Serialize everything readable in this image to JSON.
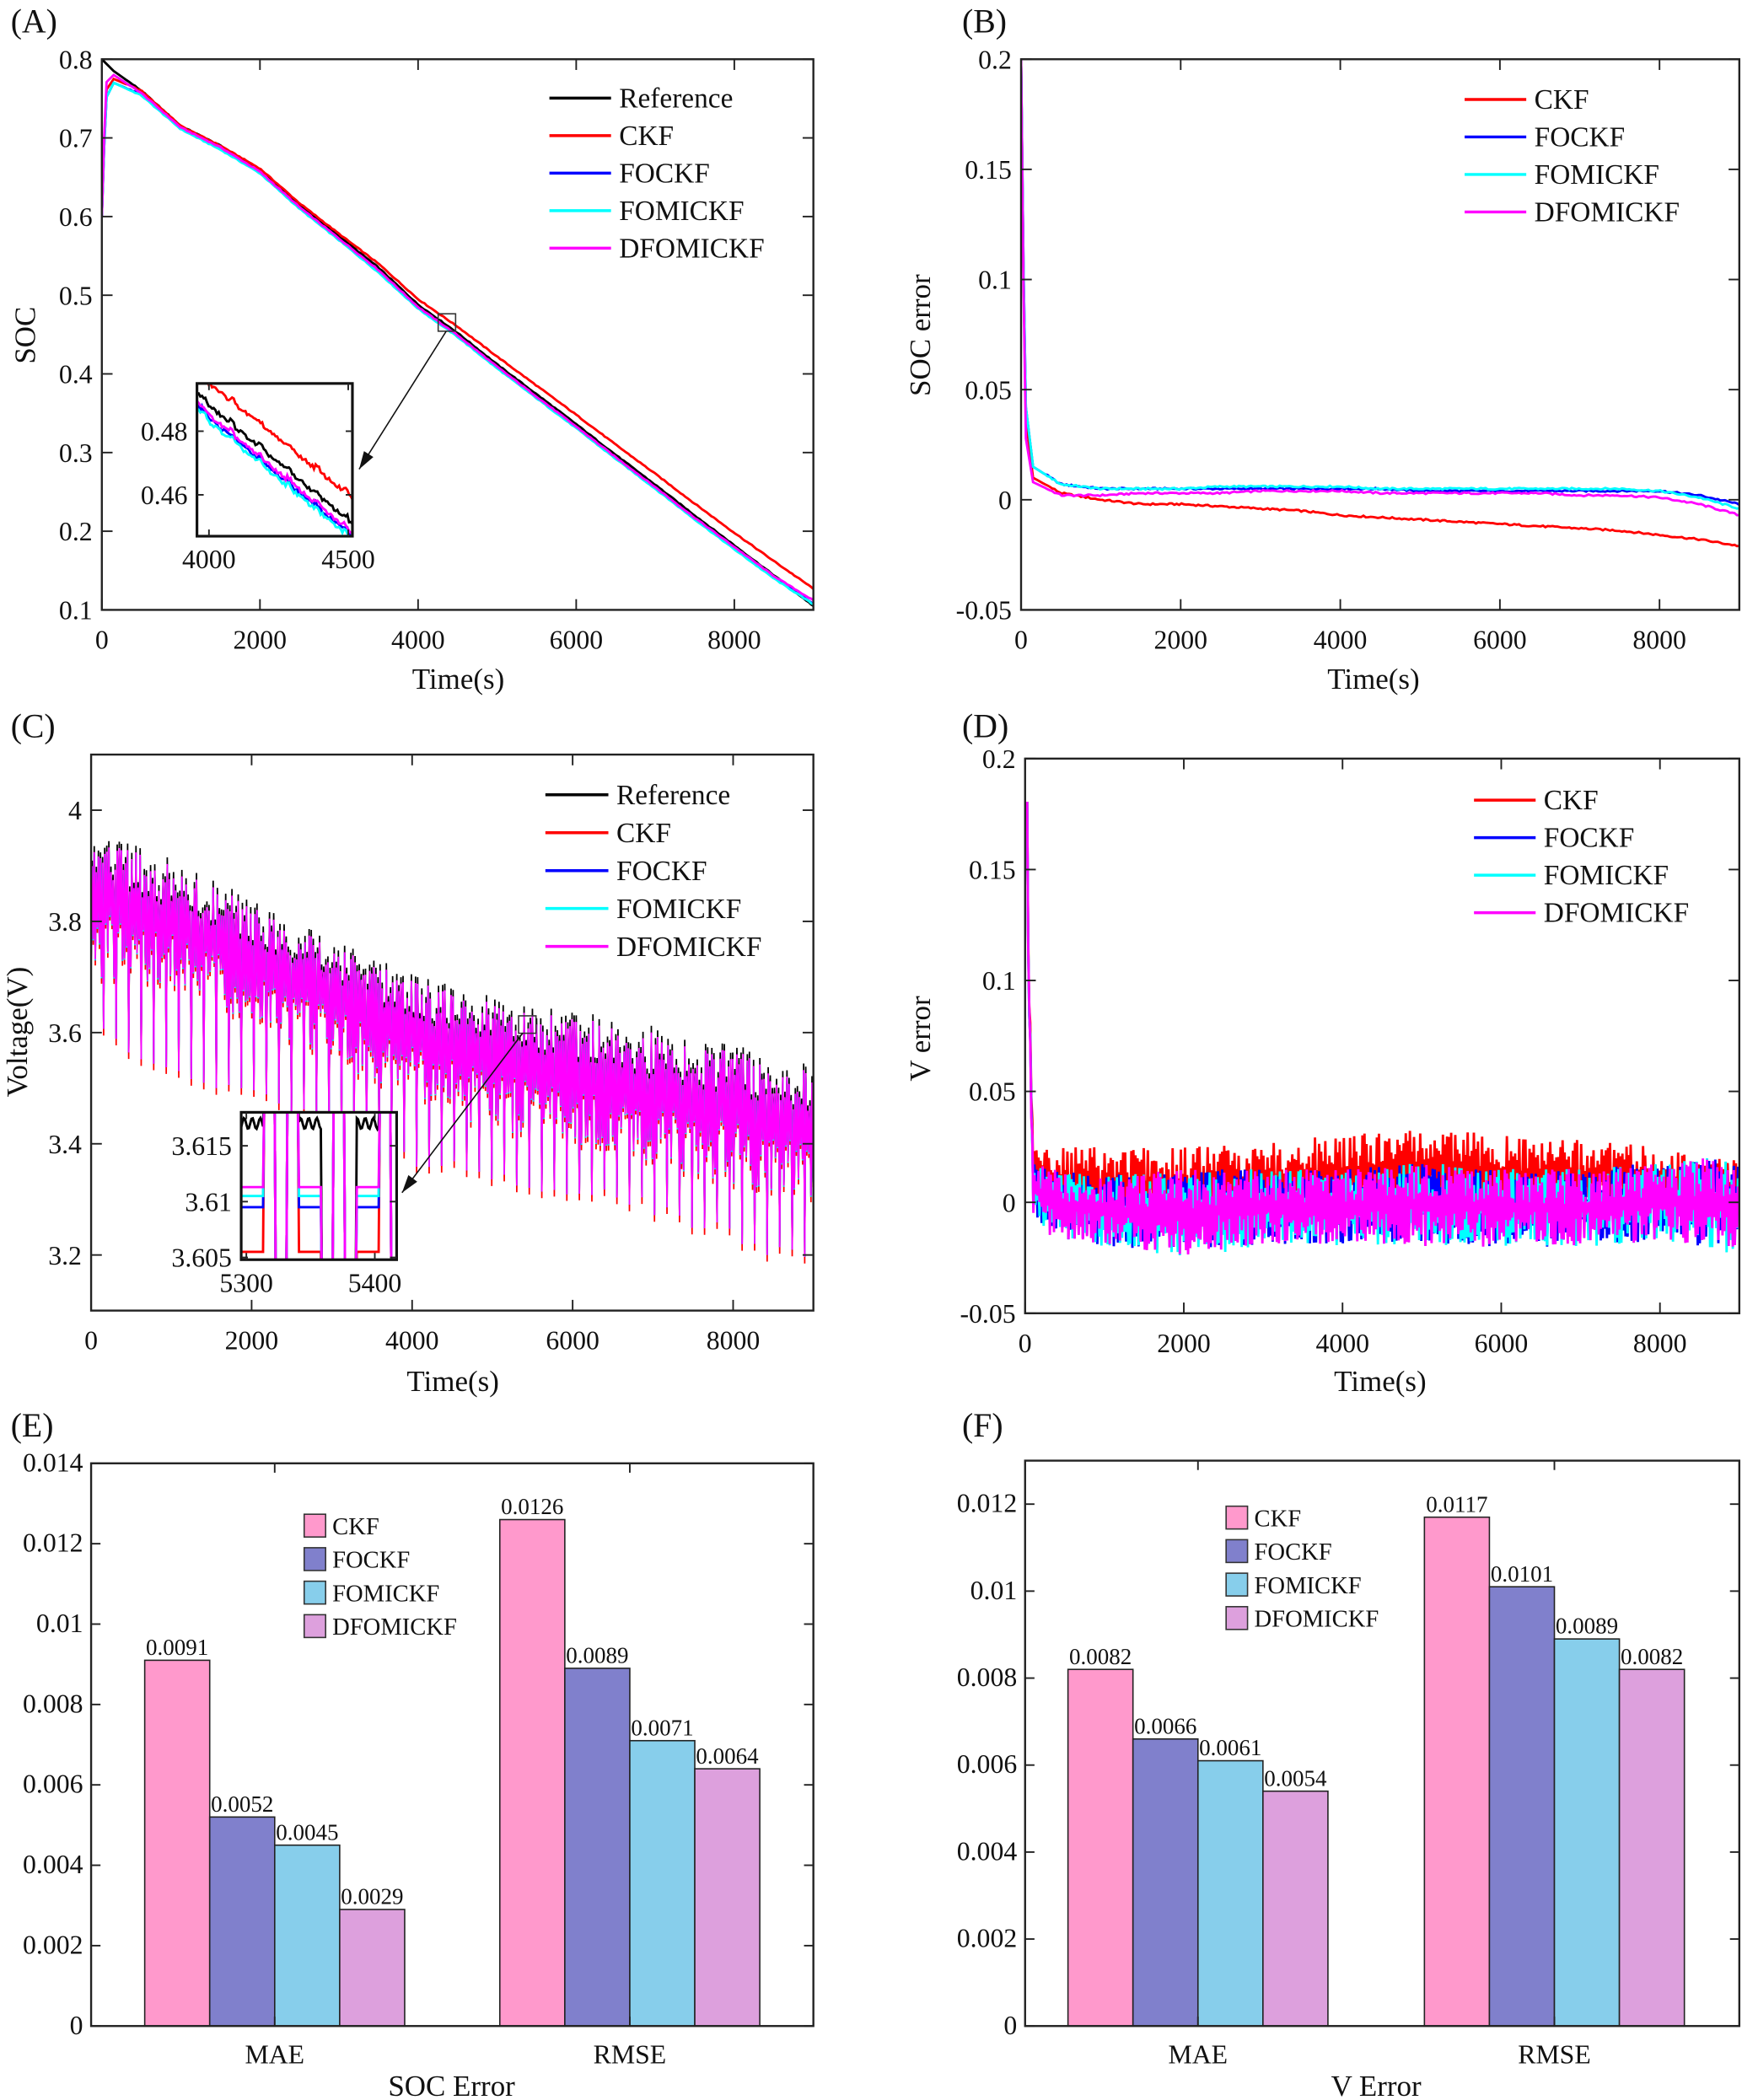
{
  "chart_data": [
    {
      "panel_label": "(A)",
      "type": "line",
      "xlabel": "Time(s)",
      "ylabel": "SOC",
      "xlim": [
        0,
        9000
      ],
      "ylim": [
        0.1,
        0.8
      ],
      "xticks": [
        "0",
        "2000",
        "4000",
        "6000",
        "8000"
      ],
      "yticks": [
        "0.1",
        "0.2",
        "0.3",
        "0.4",
        "0.5",
        "0.6",
        "0.7",
        "0.8"
      ],
      "legend_placement": "top-right",
      "x": [
        0,
        50,
        150,
        500,
        1000,
        1500,
        2000,
        2500,
        3000,
        3500,
        4000,
        4500,
        5000,
        5500,
        6000,
        6500,
        7000,
        7500,
        8000,
        8500,
        9000
      ],
      "series": [
        {
          "name": "Reference",
          "color": "#000000",
          "values": [
            0.8,
            0.795,
            0.785,
            0.76,
            0.715,
            0.69,
            0.66,
            0.615,
            0.575,
            0.535,
            0.488,
            0.452,
            0.412,
            0.374,
            0.336,
            0.297,
            0.259,
            0.22,
            0.182,
            0.144,
            0.105
          ]
        },
        {
          "name": "CKF",
          "color": "#ff0000",
          "values": [
            0.6,
            0.76,
            0.775,
            0.76,
            0.715,
            0.69,
            0.661,
            0.617,
            0.578,
            0.54,
            0.495,
            0.46,
            0.422,
            0.385,
            0.348,
            0.31,
            0.273,
            0.235,
            0.198,
            0.162,
            0.127
          ]
        },
        {
          "name": "FOCKF",
          "color": "#0000ff",
          "values": [
            0.6,
            0.75,
            0.77,
            0.755,
            0.712,
            0.686,
            0.656,
            0.611,
            0.571,
            0.53,
            0.484,
            0.448,
            0.408,
            0.37,
            0.332,
            0.293,
            0.255,
            0.216,
            0.178,
            0.141,
            0.108
          ]
        },
        {
          "name": "FOMICKF",
          "color": "#00ffff",
          "values": [
            0.6,
            0.75,
            0.77,
            0.754,
            0.711,
            0.685,
            0.655,
            0.61,
            0.57,
            0.529,
            0.483,
            0.447,
            0.407,
            0.369,
            0.331,
            0.292,
            0.254,
            0.215,
            0.177,
            0.14,
            0.107
          ]
        },
        {
          "name": "DFOMICKF",
          "color": "#ff00ff",
          "values": [
            0.6,
            0.77,
            0.78,
            0.757,
            0.713,
            0.688,
            0.657,
            0.612,
            0.572,
            0.532,
            0.485,
            0.449,
            0.409,
            0.371,
            0.333,
            0.294,
            0.256,
            0.217,
            0.18,
            0.143,
            0.112
          ]
        }
      ],
      "inset": {
        "xlim": [
          3957,
          4515
        ],
        "ylim": [
          0.447,
          0.495
        ],
        "xticks": [
          "4000",
          "4500"
        ],
        "yticks": [
          "0.46",
          "0.48"
        ]
      }
    },
    {
      "panel_label": "(B)",
      "type": "line",
      "xlabel": "Time(s)",
      "ylabel": "SOC error",
      "xlim": [
        0,
        9000
      ],
      "ylim": [
        -0.05,
        0.2
      ],
      "xticks": [
        "0",
        "2000",
        "4000",
        "6000",
        "8000"
      ],
      "yticks": [
        "-0.05",
        "0",
        "0.05",
        "0.1",
        "0.15",
        "0.2"
      ],
      "legend_placement": "top-right",
      "x": [
        0,
        50,
        150,
        500,
        1000,
        1500,
        2000,
        2500,
        3000,
        3500,
        4000,
        4500,
        5000,
        5500,
        6000,
        6500,
        7000,
        7500,
        8000,
        8500,
        9000
      ],
      "series": [
        {
          "name": "CKF",
          "color": "#ff0000",
          "values": [
            0.2,
            0.04,
            0.01,
            0.003,
            0,
            -0.002,
            -0.002,
            -0.003,
            -0.004,
            -0.005,
            -0.007,
            -0.008,
            -0.009,
            -0.01,
            -0.011,
            -0.012,
            -0.013,
            -0.014,
            -0.016,
            -0.018,
            -0.021
          ]
        },
        {
          "name": "FOCKF",
          "color": "#0000ff",
          "values": [
            0.2,
            0.045,
            0.015,
            0.007,
            0.005,
            0.005,
            0.005,
            0.005,
            0.005,
            0.005,
            0.005,
            0.005,
            0.004,
            0.004,
            0.004,
            0.004,
            0.004,
            0.004,
            0.004,
            0.002,
            -0.002
          ]
        },
        {
          "name": "FOMICKF",
          "color": "#00ffff",
          "values": [
            0.2,
            0.045,
            0.015,
            0.007,
            0.005,
            0.005,
            0.005,
            0.006,
            0.006,
            0.006,
            0.006,
            0.005,
            0.005,
            0.005,
            0.005,
            0.005,
            0.005,
            0.005,
            0.004,
            0.001,
            -0.004
          ]
        },
        {
          "name": "DFOMICKF",
          "color": "#ff00ff",
          "values": [
            0.2,
            0.03,
            0.008,
            0.002,
            0.002,
            0.003,
            0.003,
            0.003,
            0.004,
            0.004,
            0.004,
            0.003,
            0.003,
            0.003,
            0.003,
            0.003,
            0.002,
            0.002,
            0.001,
            -0.002,
            -0.007
          ]
        }
      ]
    },
    {
      "panel_label": "(C)",
      "type": "line",
      "xlabel": "Time(s)",
      "ylabel": "Voltage(V)",
      "xlim": [
        0,
        9000
      ],
      "ylim": [
        3.1,
        4.1
      ],
      "xticks": [
        "0",
        "2000",
        "4000",
        "6000",
        "8000"
      ],
      "yticks": [
        "3.2",
        "3.4",
        "3.6",
        "3.8",
        "4"
      ],
      "legend_placement": "top-right",
      "x": [
        0,
        1000,
        2000,
        3000,
        4000,
        5000,
        6000,
        7000,
        8000,
        9000
      ],
      "band": {
        "upper": [
          3.97,
          3.9,
          3.83,
          3.76,
          3.7,
          3.66,
          3.63,
          3.6,
          3.57,
          3.53
        ],
        "lower": [
          3.7,
          3.68,
          3.62,
          3.55,
          3.48,
          3.42,
          3.4,
          3.36,
          3.33,
          3.3
        ],
        "spike_min": [
          3.6,
          3.52,
          3.47,
          3.42,
          3.36,
          3.33,
          3.3,
          3.27,
          3.22,
          3.17
        ]
      },
      "series": [
        {
          "name": "Reference",
          "color": "#000000"
        },
        {
          "name": "CKF",
          "color": "#ff0000"
        },
        {
          "name": "FOCKF",
          "color": "#0000ff"
        },
        {
          "name": "FOMICKF",
          "color": "#00ffff"
        },
        {
          "name": "DFOMICKF",
          "color": "#ff00ff"
        }
      ],
      "inset": {
        "xlim": [
          5296,
          5417
        ],
        "ylim": [
          3.6048,
          3.618
        ],
        "xticks": [
          "5300",
          "5400"
        ],
        "yticks": [
          "3.605",
          "3.61",
          "3.615"
        ]
      }
    },
    {
      "panel_label": "(D)",
      "type": "line",
      "xlabel": "Time(s)",
      "ylabel": "V error",
      "xlim": [
        0,
        9000
      ],
      "ylim": [
        -0.05,
        0.2
      ],
      "xticks": [
        "0",
        "2000",
        "4000",
        "6000",
        "8000"
      ],
      "yticks": [
        "-0.05",
        "0",
        "0.05",
        "0.1",
        "0.15",
        "0.2"
      ],
      "legend_placement": "top-right",
      "x": [
        0,
        100,
        300,
        1000,
        2000,
        3000,
        4000,
        5000,
        6000,
        7000,
        8000,
        8500,
        9000
      ],
      "series": [
        {
          "name": "CKF",
          "color": "#ff0000",
          "upper": [
            0.18,
            0.03,
            0.025,
            0.025,
            0.025,
            0.028,
            0.03,
            0.035,
            0.03,
            0.028,
            0.025,
            0.02,
            0.02
          ],
          "lower": [
            0.18,
            0,
            -0.005,
            -0.01,
            -0.01,
            -0.01,
            -0.005,
            -0.005,
            -0.005,
            -0.005,
            -0.005,
            -0.005,
            -0.005
          ]
        },
        {
          "name": "FOCKF",
          "color": "#0000ff",
          "upper": [
            0.18,
            0.02,
            0.015,
            0.012,
            0.015,
            0.015,
            0.015,
            0.018,
            0.015,
            0.015,
            0.018,
            0.02,
            0.02
          ],
          "lower": [
            0.18,
            -0.005,
            -0.015,
            -0.02,
            -0.022,
            -0.02,
            -0.02,
            -0.02,
            -0.02,
            -0.02,
            -0.018,
            -0.02,
            -0.02
          ]
        },
        {
          "name": "FOMICKF",
          "color": "#00ffff",
          "upper": [
            0.18,
            0.02,
            0.015,
            0.012,
            0.015,
            0.015,
            0.015,
            0.018,
            0.015,
            0.015,
            0.018,
            0.02,
            0.02
          ],
          "lower": [
            0.18,
            -0.005,
            -0.015,
            -0.02,
            -0.025,
            -0.02,
            -0.02,
            -0.02,
            -0.02,
            -0.02,
            -0.018,
            -0.02,
            -0.025
          ]
        },
        {
          "name": "DFOMICKF",
          "color": "#ff00ff",
          "upper": [
            0.18,
            0.02,
            0.015,
            0.012,
            0.015,
            0.015,
            0.015,
            0.018,
            0.015,
            0.015,
            0.018,
            0.02,
            0.02
          ],
          "lower": [
            0.18,
            -0.005,
            -0.015,
            -0.02,
            -0.025,
            -0.02,
            -0.02,
            -0.02,
            -0.02,
            -0.02,
            -0.018,
            -0.02,
            -0.02
          ]
        }
      ]
    },
    {
      "panel_label": "(E)",
      "type": "bar",
      "xlabel": "SOC Error",
      "ylabel": "",
      "ylim": [
        0,
        0.014
      ],
      "yticks": [
        "0",
        "0.002",
        "0.004",
        "0.006",
        "0.008",
        "0.01",
        "0.012",
        "0.014"
      ],
      "categories": [
        "MAE",
        "RMSE"
      ],
      "legend_placement": "top-center",
      "series": [
        {
          "name": "CKF",
          "color": "#ff99cc",
          "values": [
            0.0091,
            0.0126
          ],
          "labels": [
            "0.0091",
            "0.0126"
          ]
        },
        {
          "name": "FOCKF",
          "color": "#8080cc",
          "values": [
            0.0052,
            0.0089
          ],
          "labels": [
            "0.0052",
            "0.0089"
          ]
        },
        {
          "name": "FOMICKF",
          "color": "#87ceeb",
          "values": [
            0.0045,
            0.0071
          ],
          "labels": [
            "0.0045",
            "0.0071"
          ]
        },
        {
          "name": "DFOMICKF",
          "color": "#dda0dd",
          "values": [
            0.0029,
            0.0064
          ],
          "labels": [
            "0.0029",
            "0.0064"
          ]
        }
      ]
    },
    {
      "panel_label": "(F)",
      "type": "bar",
      "xlabel": "V Error",
      "ylabel": "",
      "ylim": [
        0,
        0.013
      ],
      "yticks": [
        "0",
        "0.002",
        "0.004",
        "0.006",
        "0.008",
        "0.01",
        "0.012"
      ],
      "categories": [
        "MAE",
        "RMSE"
      ],
      "legend_placement": "top-center",
      "series": [
        {
          "name": "CKF",
          "color": "#ff99cc",
          "values": [
            0.0082,
            0.0117
          ],
          "labels": [
            "0.0082",
            "0.0117"
          ]
        },
        {
          "name": "FOCKF",
          "color": "#8080cc",
          "values": [
            0.0066,
            0.0101
          ],
          "labels": [
            "0.0066",
            "0.0101"
          ]
        },
        {
          "name": "FOMICKF",
          "color": "#87ceeb",
          "values": [
            0.0061,
            0.0089
          ],
          "labels": [
            "0.0061",
            "0.0089"
          ]
        },
        {
          "name": "DFOMICKF",
          "color": "#dda0dd",
          "values": [
            0.0054,
            0.0082
          ],
          "labels": [
            "0.0054",
            "0.0082"
          ]
        }
      ]
    }
  ]
}
